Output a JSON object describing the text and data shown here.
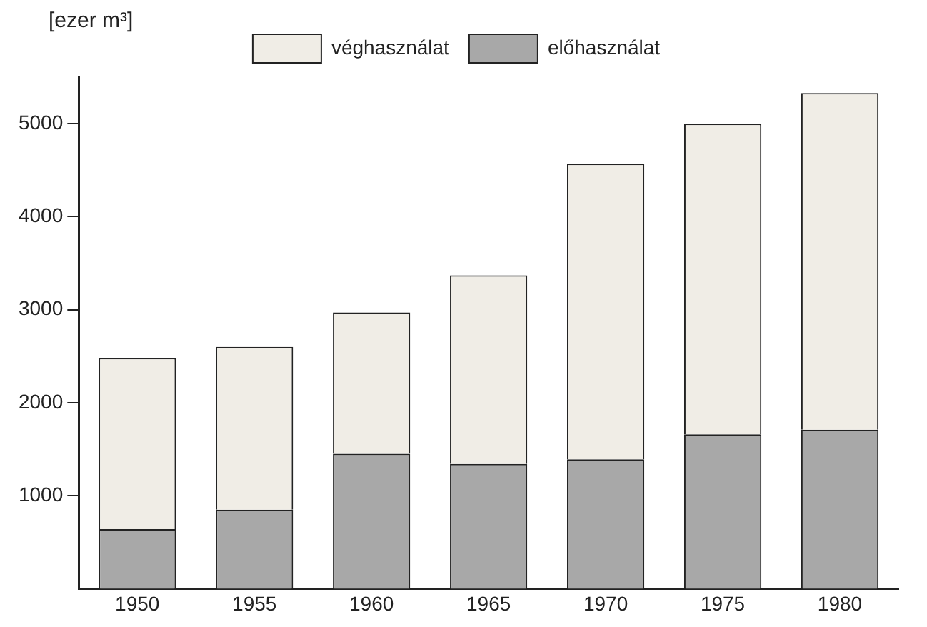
{
  "chart_data": {
    "type": "bar",
    "ylabel": "[ezer m³]",
    "stacked": true,
    "legend": "top",
    "grid": false,
    "categories": [
      "1950",
      "1955",
      "1960",
      "1965",
      "1970",
      "1975",
      "1980"
    ],
    "series": [
      {
        "name": "előhasználat",
        "color": "#a8a8a8",
        "values": [
          640,
          850,
          1450,
          1340,
          1390,
          1660,
          1710
        ]
      },
      {
        "name": "véghasználat",
        "color": "#f0ede6",
        "values": [
          1840,
          1750,
          1520,
          2030,
          3180,
          3340,
          3620
        ]
      }
    ],
    "ylim": [
      0,
      5500
    ],
    "yticks": [
      1000,
      2000,
      3000,
      4000,
      5000
    ]
  }
}
